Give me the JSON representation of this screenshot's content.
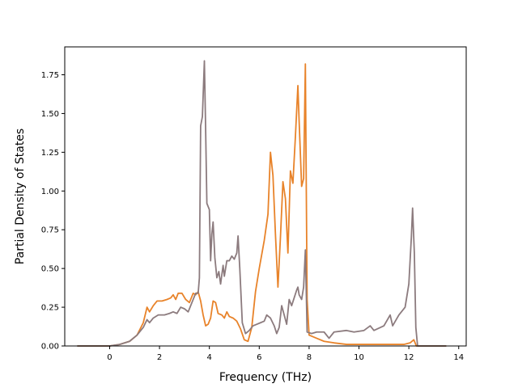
{
  "chart_data": {
    "type": "line",
    "title": "",
    "xlabel": "Frequency (THz)",
    "ylabel": "Partial Density of States",
    "xlim": [
      -1.8,
      14.3
    ],
    "ylim": [
      0,
      1.93
    ],
    "xticks": [
      0,
      2,
      4,
      6,
      8,
      10,
      12,
      14
    ],
    "yticks": [
      0.0,
      0.25,
      0.5,
      0.75,
      1.0,
      1.25,
      1.5,
      1.75
    ],
    "xtick_labels": [
      "0",
      "2",
      "4",
      "6",
      "8",
      "10",
      "12",
      "14"
    ],
    "ytick_labels": [
      "0.00",
      "0.25",
      "0.50",
      "0.75",
      "1.00",
      "1.25",
      "1.50",
      "1.75"
    ],
    "grid": false,
    "legend": "none",
    "series": [
      {
        "color": "#e8832a",
        "points": [
          [
            -1.3,
            0.0
          ],
          [
            0.0,
            0.0
          ],
          [
            0.4,
            0.01
          ],
          [
            0.8,
            0.03
          ],
          [
            1.1,
            0.07
          ],
          [
            1.35,
            0.15
          ],
          [
            1.5,
            0.25
          ],
          [
            1.6,
            0.22
          ],
          [
            1.75,
            0.26
          ],
          [
            1.9,
            0.29
          ],
          [
            2.1,
            0.29
          ],
          [
            2.3,
            0.3
          ],
          [
            2.45,
            0.31
          ],
          [
            2.55,
            0.33
          ],
          [
            2.65,
            0.3
          ],
          [
            2.75,
            0.34
          ],
          [
            2.9,
            0.34
          ],
          [
            3.05,
            0.3
          ],
          [
            3.2,
            0.28
          ],
          [
            3.35,
            0.34
          ],
          [
            3.45,
            0.33
          ],
          [
            3.55,
            0.35
          ],
          [
            3.65,
            0.29
          ],
          [
            3.75,
            0.2
          ],
          [
            3.85,
            0.13
          ],
          [
            3.95,
            0.14
          ],
          [
            4.05,
            0.18
          ],
          [
            4.15,
            0.29
          ],
          [
            4.25,
            0.28
          ],
          [
            4.35,
            0.21
          ],
          [
            4.5,
            0.2
          ],
          [
            4.6,
            0.18
          ],
          [
            4.7,
            0.22
          ],
          [
            4.8,
            0.19
          ],
          [
            4.95,
            0.18
          ],
          [
            5.1,
            0.16
          ],
          [
            5.25,
            0.11
          ],
          [
            5.4,
            0.04
          ],
          [
            5.55,
            0.03
          ],
          [
            5.7,
            0.12
          ],
          [
            5.85,
            0.35
          ],
          [
            6.0,
            0.5
          ],
          [
            6.2,
            0.68
          ],
          [
            6.35,
            0.85
          ],
          [
            6.45,
            1.25
          ],
          [
            6.55,
            1.1
          ],
          [
            6.65,
            0.72
          ],
          [
            6.75,
            0.38
          ],
          [
            6.85,
            0.7
          ],
          [
            6.95,
            1.06
          ],
          [
            7.05,
            0.95
          ],
          [
            7.15,
            0.6
          ],
          [
            7.25,
            1.13
          ],
          [
            7.35,
            1.05
          ],
          [
            7.45,
            1.35
          ],
          [
            7.55,
            1.68
          ],
          [
            7.6,
            1.45
          ],
          [
            7.7,
            1.03
          ],
          [
            7.78,
            1.08
          ],
          [
            7.85,
            1.82
          ],
          [
            7.92,
            0.3
          ],
          [
            8.0,
            0.07
          ],
          [
            8.3,
            0.05
          ],
          [
            8.6,
            0.03
          ],
          [
            9.0,
            0.02
          ],
          [
            9.5,
            0.01
          ],
          [
            10.0,
            0.01
          ],
          [
            11.0,
            0.01
          ],
          [
            11.8,
            0.01
          ],
          [
            12.05,
            0.02
          ],
          [
            12.2,
            0.04
          ],
          [
            12.3,
            0.0
          ],
          [
            13.5,
            0.0
          ]
        ]
      },
      {
        "color": "#8c7b7e",
        "points": [
          [
            -1.3,
            0.0
          ],
          [
            0.0,
            0.0
          ],
          [
            0.4,
            0.01
          ],
          [
            0.8,
            0.03
          ],
          [
            1.1,
            0.07
          ],
          [
            1.35,
            0.12
          ],
          [
            1.5,
            0.17
          ],
          [
            1.6,
            0.15
          ],
          [
            1.75,
            0.18
          ],
          [
            1.95,
            0.2
          ],
          [
            2.2,
            0.2
          ],
          [
            2.4,
            0.21
          ],
          [
            2.55,
            0.22
          ],
          [
            2.7,
            0.21
          ],
          [
            2.85,
            0.25
          ],
          [
            3.0,
            0.24
          ],
          [
            3.15,
            0.22
          ],
          [
            3.3,
            0.28
          ],
          [
            3.45,
            0.34
          ],
          [
            3.55,
            0.34
          ],
          [
            3.6,
            0.44
          ],
          [
            3.65,
            1.42
          ],
          [
            3.72,
            1.48
          ],
          [
            3.8,
            1.84
          ],
          [
            3.85,
            1.4
          ],
          [
            3.9,
            0.92
          ],
          [
            4.0,
            0.88
          ],
          [
            4.05,
            0.55
          ],
          [
            4.1,
            0.72
          ],
          [
            4.15,
            0.8
          ],
          [
            4.22,
            0.57
          ],
          [
            4.3,
            0.44
          ],
          [
            4.38,
            0.48
          ],
          [
            4.45,
            0.4
          ],
          [
            4.55,
            0.52
          ],
          [
            4.6,
            0.45
          ],
          [
            4.7,
            0.55
          ],
          [
            4.8,
            0.55
          ],
          [
            4.9,
            0.58
          ],
          [
            5.0,
            0.56
          ],
          [
            5.1,
            0.6
          ],
          [
            5.15,
            0.71
          ],
          [
            5.22,
            0.5
          ],
          [
            5.32,
            0.15
          ],
          [
            5.45,
            0.08
          ],
          [
            5.6,
            0.1
          ],
          [
            5.75,
            0.13
          ],
          [
            5.9,
            0.14
          ],
          [
            6.05,
            0.15
          ],
          [
            6.2,
            0.16
          ],
          [
            6.3,
            0.2
          ],
          [
            6.45,
            0.18
          ],
          [
            6.6,
            0.13
          ],
          [
            6.7,
            0.08
          ],
          [
            6.8,
            0.12
          ],
          [
            6.9,
            0.26
          ],
          [
            7.0,
            0.2
          ],
          [
            7.1,
            0.14
          ],
          [
            7.2,
            0.3
          ],
          [
            7.3,
            0.26
          ],
          [
            7.4,
            0.31
          ],
          [
            7.5,
            0.36
          ],
          [
            7.55,
            0.38
          ],
          [
            7.6,
            0.33
          ],
          [
            7.7,
            0.3
          ],
          [
            7.78,
            0.38
          ],
          [
            7.85,
            0.62
          ],
          [
            7.92,
            0.09
          ],
          [
            8.1,
            0.08
          ],
          [
            8.3,
            0.09
          ],
          [
            8.6,
            0.09
          ],
          [
            8.8,
            0.05
          ],
          [
            9.0,
            0.09
          ],
          [
            9.5,
            0.1
          ],
          [
            9.8,
            0.09
          ],
          [
            10.2,
            0.1
          ],
          [
            10.45,
            0.13
          ],
          [
            10.6,
            0.1
          ],
          [
            11.0,
            0.13
          ],
          [
            11.25,
            0.2
          ],
          [
            11.35,
            0.13
          ],
          [
            11.6,
            0.2
          ],
          [
            11.85,
            0.25
          ],
          [
            12.0,
            0.4
          ],
          [
            12.1,
            0.7
          ],
          [
            12.15,
            0.89
          ],
          [
            12.22,
            0.6
          ],
          [
            12.28,
            0.12
          ],
          [
            12.35,
            0.0
          ],
          [
            13.5,
            0.0
          ]
        ]
      }
    ]
  }
}
